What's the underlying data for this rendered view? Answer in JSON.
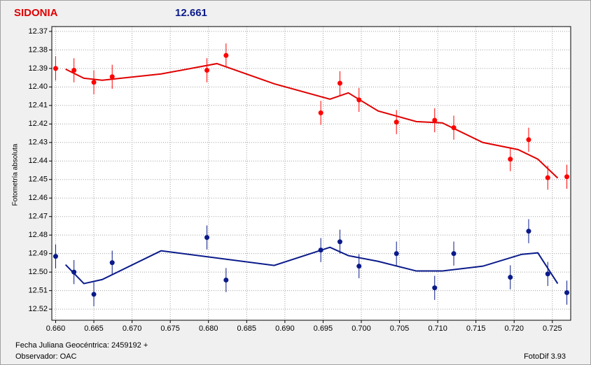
{
  "chart_data": {
    "type": "scatter",
    "title": "SIDONIA",
    "title_color": "#e00000",
    "subtitle": "12.661",
    "subtitle_color": "#0a1a8a",
    "ylabel": "Fotometría absoluta",
    "xlabel": "Fecha Juliana Geocéntrica: 2459192 +",
    "footer_left": "Observador: OAC",
    "footer_right": "FotoDif 3.93",
    "xlim": [
      0.6595,
      0.7274
    ],
    "ylim": [
      12.3674,
      12.526
    ],
    "y_inverted": true,
    "grid": true,
    "xticks": [
      {
        "value": 0.66,
        "label": "0.660"
      },
      0.665,
      {
        "value": 0.67,
        "label": "0.670"
      },
      0.675,
      {
        "value": 0.68,
        "label": "0.680"
      },
      0.685,
      {
        "value": 0.69,
        "label": "0.690"
      },
      0.695,
      {
        "value": 0.7,
        "label": "0.700"
      },
      0.705,
      {
        "value": 0.71,
        "label": "0.710"
      },
      0.715,
      {
        "value": 0.72,
        "label": "0.720"
      },
      0.725
    ],
    "yticks": [
      12.37,
      12.38,
      12.39,
      {
        "value": 12.4,
        "label": "12.40"
      },
      12.41,
      12.42,
      12.43,
      12.44,
      12.45,
      12.46,
      12.47,
      12.48,
      12.49,
      {
        "value": 12.5,
        "label": "12.50"
      },
      12.51,
      12.52
    ],
    "series": [
      {
        "color": "#ff0000",
        "line_color": "#e00000",
        "error": 0.0065,
        "x": [
          0.66,
          0.6624,
          0.665,
          0.6674,
          0.6798,
          0.6823,
          0.6947,
          0.6972,
          0.6997,
          0.7046,
          0.7096,
          0.7121,
          0.7195,
          0.7219,
          0.7244,
          0.7269
        ],
        "values": [
          12.39,
          12.391,
          12.3975,
          12.3945,
          12.391,
          12.383,
          12.414,
          12.398,
          12.407,
          12.419,
          12.418,
          12.422,
          12.439,
          12.4285,
          12.449,
          12.4485
        ],
        "fit": {
          "x": [
            0.6613,
            0.6637,
            0.6661,
            0.6738,
            0.6811,
            0.6886,
            0.6959,
            0.6983,
            0.7022,
            0.7072,
            0.7106,
            0.7159,
            0.7205,
            0.7231,
            0.7257
          ],
          "values": [
            12.3904,
            12.3953,
            12.3964,
            12.393,
            12.3874,
            12.3983,
            12.4066,
            12.4032,
            12.413,
            12.4187,
            12.4194,
            12.43,
            12.4338,
            12.439,
            12.4492
          ]
        }
      },
      {
        "color": "#0a1a8a",
        "line_color": "#0a1a8a",
        "error": 0.0065,
        "x": [
          0.66,
          0.6624,
          0.665,
          0.6674,
          0.6798,
          0.6823,
          0.6947,
          0.6972,
          0.6997,
          0.7046,
          0.7096,
          0.7121,
          0.7195,
          0.7219,
          0.7244,
          0.7269
        ],
        "values": [
          12.4915,
          12.5,
          12.512,
          12.4949,
          12.4813,
          12.5043,
          12.4881,
          12.4836,
          12.4968,
          12.49,
          12.5085,
          12.49,
          12.5028,
          12.4779,
          12.501,
          12.5111
        ],
        "fit": {
          "x": [
            0.6613,
            0.6637,
            0.6661,
            0.6738,
            0.6886,
            0.6959,
            0.6983,
            0.7022,
            0.7072,
            0.7106,
            0.7159,
            0.721,
            0.7231,
            0.7257
          ],
          "values": [
            12.496,
            12.5062,
            12.504,
            12.4885,
            12.4964,
            12.4866,
            12.4911,
            12.4942,
            12.4994,
            12.4994,
            12.4968,
            12.4904,
            12.4896,
            12.5062
          ]
        }
      }
    ]
  }
}
